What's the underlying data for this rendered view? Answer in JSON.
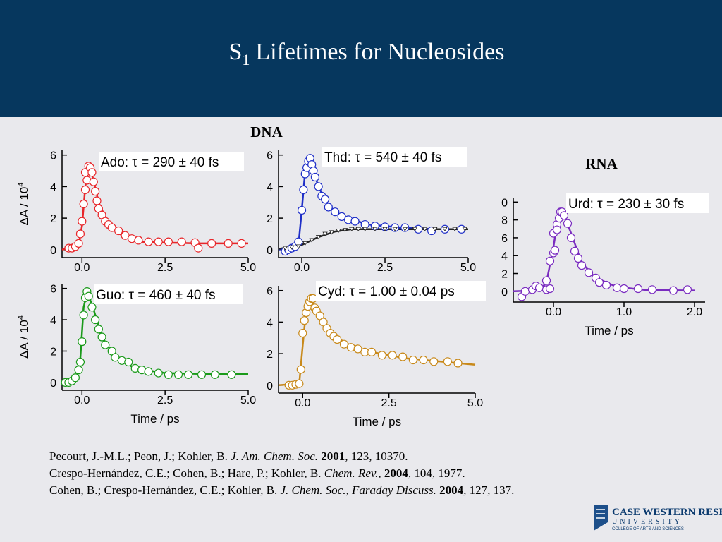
{
  "header": {
    "title": {
      "main": "S",
      "sub": "1",
      "rest": "Lifetimes for Nucleosides"
    }
  },
  "headings": {
    "dna": "DNA",
    "rna": "RNA"
  },
  "chart_data": [
    {
      "type": "scatter",
      "annotation": "Ado: τ = 290 ± 40 fs",
      "ylabel": {
        "text": "ΔA / 10",
        "sup": "4"
      },
      "xlim": [
        -0.6,
        5.0
      ],
      "xticks": [
        {
          "value": 0,
          "label": "0.0"
        },
        {
          "value": 2.5,
          "label": "2.5"
        },
        {
          "value": 5,
          "label": "5.0"
        }
      ],
      "ylim": [
        -0.5,
        6.3
      ],
      "yticks": [
        0,
        2,
        4,
        6
      ],
      "series": [
        {
          "color": "#e8262a",
          "mark": "circle",
          "x": [
            -0.4,
            -0.3,
            -0.2,
            -0.1,
            -0.05,
            0,
            0.05,
            0.1,
            0.15,
            0.1,
            0.2,
            0.25,
            0.3,
            0.35,
            0.4,
            0.45,
            0.5,
            0.6,
            0.7,
            0.8,
            0.9,
            1.1,
            1.3,
            1.5,
            1.7,
            2.0,
            2.3,
            2.6,
            3.0,
            3.4,
            3.5,
            3.9,
            4.4,
            4.8
          ],
          "values": [
            0.1,
            0.1,
            0.2,
            0.4,
            1,
            1.8,
            2.9,
            3.8,
            4.4,
            4.9,
            5.3,
            5.2,
            4.9,
            4.3,
            3.7,
            3.1,
            2.6,
            2.2,
            1.8,
            1.6,
            1.4,
            1.2,
            0.9,
            0.7,
            0.6,
            0.5,
            0.5,
            0.5,
            0.5,
            0.45,
            0.1,
            0.4,
            0.4,
            0.4
          ]
        },
        {
          "color": "#e8262a",
          "mark": "line",
          "x": [
            -0.6,
            -0.1,
            0,
            0.1,
            0.2,
            0.3,
            0.5,
            0.8,
            1.2,
            1.8,
            2.5,
            3.5,
            5.0
          ],
          "values": [
            0,
            0.3,
            1.5,
            4,
            5.2,
            4.8,
            3.0,
            1.6,
            0.9,
            0.5,
            0.45,
            0.4,
            0.4
          ]
        }
      ]
    },
    {
      "type": "scatter",
      "annotation": "Thd: τ = 540 ± 40 fs",
      "xlim": [
        -0.7,
        5.0
      ],
      "xticks": [
        {
          "value": 0,
          "label": "0.0"
        },
        {
          "value": 2.5,
          "label": "2.5"
        },
        {
          "value": 5,
          "label": "5.0"
        }
      ],
      "ylim": [
        -0.5,
        6.3
      ],
      "yticks": [
        0,
        2,
        4,
        6
      ],
      "series": [
        {
          "color": "#1f2fc8",
          "mark": "circle",
          "x": [
            -0.5,
            -0.4,
            -0.3,
            -0.2,
            -0.1,
            0,
            0.05,
            0.1,
            0.15,
            0.2,
            0.25,
            0.3,
            0.35,
            0.4,
            0.5,
            0.6,
            0.7,
            0.8,
            1.0,
            1.2,
            1.4,
            1.6,
            1.9,
            2.2,
            2.5,
            2.8,
            3.1,
            3.5,
            3.9,
            4.3,
            4.8
          ],
          "values": [
            -0.1,
            0,
            0.1,
            0.2,
            0.5,
            2.5,
            3.8,
            4.8,
            5.2,
            5.6,
            5.8,
            5.4,
            5,
            4.6,
            4.0,
            3.4,
            3.2,
            2.7,
            2.4,
            2.1,
            1.9,
            1.8,
            1.6,
            1.5,
            1.45,
            1.4,
            1.4,
            1.3,
            1.2,
            1.3,
            1.3
          ]
        },
        {
          "color": "#1f2fc8",
          "mark": "line",
          "x": [
            -0.7,
            -0.1,
            0,
            0.1,
            0.2,
            0.3,
            0.5,
            0.8,
            1.2,
            2,
            3,
            4,
            5
          ],
          "values": [
            0,
            0.3,
            2.5,
            5,
            5.8,
            5.3,
            4,
            2.8,
            2.1,
            1.6,
            1.4,
            1.3,
            1.3
          ]
        },
        {
          "color": "#222222",
          "mark": "triangle",
          "x": [
            -0.5,
            -0.3,
            -0.1,
            0.1,
            0.3,
            0.5,
            0.7,
            0.9,
            1.1,
            1.3,
            1.5,
            1.7,
            1.9,
            2.2,
            2.5,
            2.8,
            3.1,
            3.4,
            3.7,
            4,
            4.3,
            4.6,
            4.9
          ],
          "values": [
            0.1,
            0.15,
            0.2,
            0.4,
            0.6,
            0.8,
            1.0,
            1.1,
            1.2,
            1.25,
            1.3,
            1.3,
            1.3,
            1.3,
            1.3,
            1.3,
            1.3,
            1.3,
            1.3,
            1.3,
            1.3,
            1.3,
            1.3
          ]
        },
        {
          "color": "#222222",
          "mark": "line",
          "x": [
            -0.7,
            0,
            0.5,
            1,
            1.5,
            2,
            5
          ],
          "values": [
            0.05,
            0.3,
            0.8,
            1.15,
            1.3,
            1.3,
            1.3
          ]
        }
      ]
    },
    {
      "type": "scatter",
      "annotation": "Guo: τ = 460 ± 40 fs",
      "ylabel": {
        "text": "ΔA / 10",
        "sup": "4"
      },
      "xlabel": "Time / ps",
      "xlim": [
        -0.6,
        5.0
      ],
      "xticks": [
        {
          "value": 0,
          "label": "0.0"
        },
        {
          "value": 2.5,
          "label": "2.5"
        },
        {
          "value": 5,
          "label": "5.0"
        }
      ],
      "ylim": [
        -0.5,
        6.3
      ],
      "yticks": [
        0,
        2,
        4,
        6
      ],
      "series": [
        {
          "color": "#1a9a1a",
          "mark": "circle",
          "x": [
            -0.5,
            -0.4,
            -0.3,
            -0.2,
            -0.1,
            -0.05,
            0,
            0.05,
            0.1,
            0.15,
            0.2,
            0.3,
            0.4,
            0.5,
            0.6,
            0.7,
            0.9,
            1.0,
            1.2,
            1.4,
            1.6,
            1.8,
            2.0,
            2.3,
            2.6,
            2.9,
            3.2,
            3.6,
            4.0,
            4.5
          ],
          "values": [
            0,
            0,
            0.1,
            0.3,
            0.8,
            1.3,
            2.6,
            4.3,
            5.4,
            5.8,
            5.5,
            4.8,
            4.0,
            3.4,
            2.9,
            2.4,
            2.0,
            1.6,
            1.4,
            1.3,
            0.9,
            0.8,
            0.7,
            0.6,
            0.5,
            0.5,
            0.5,
            0.5,
            0.5,
            0.5
          ]
        },
        {
          "color": "#1a9a1a",
          "mark": "line",
          "x": [
            -0.6,
            -0.15,
            -0.05,
            0.05,
            0.15,
            0.3,
            0.6,
            1,
            1.6,
            2.5,
            3.5,
            5
          ],
          "values": [
            0,
            0.3,
            1.5,
            4.8,
            5.7,
            5.0,
            2.9,
            1.6,
            0.9,
            0.6,
            0.55,
            0.55
          ]
        }
      ]
    },
    {
      "type": "scatter",
      "annotation": "Cyd: τ = 1.00 ± 0.04 ps",
      "xlabel": "Time / ps",
      "xlim": [
        -0.7,
        5.0
      ],
      "xticks": [
        {
          "value": 0,
          "label": "0.0"
        },
        {
          "value": 2.5,
          "label": "2.5"
        },
        {
          "value": 5,
          "label": "5.0"
        }
      ],
      "ylim": [
        -0.5,
        6.3
      ],
      "yticks": [
        0,
        2,
        4,
        6
      ],
      "series": [
        {
          "color": "#c8891a",
          "mark": "circle",
          "x": [
            -0.4,
            -0.3,
            -0.2,
            -0.1,
            -0.05,
            0,
            0.05,
            0.1,
            0.15,
            0.2,
            0.25,
            0.3,
            0.35,
            0.4,
            0.5,
            0.6,
            0.7,
            0.8,
            0.9,
            1.0,
            1.2,
            1.4,
            1.6,
            1.8,
            2.0,
            2.3,
            2.6,
            2.9,
            3.2,
            3.5,
            3.8,
            4.2,
            4.5
          ],
          "values": [
            0,
            0,
            0.05,
            0.1,
            1,
            3.3,
            4.1,
            4.6,
            5.0,
            5.3,
            5.5,
            5.5,
            4.9,
            4.7,
            4.4,
            4.0,
            3.6,
            3.3,
            3.1,
            2.9,
            2.6,
            2.4,
            2.3,
            2.1,
            2.1,
            1.9,
            1.9,
            1.8,
            1.6,
            1.6,
            1.5,
            1.5,
            1.4
          ]
        },
        {
          "color": "#c8891a",
          "mark": "line",
          "x": [
            -0.7,
            -0.1,
            0,
            0.1,
            0.2,
            0.3,
            0.6,
            1,
            1.5,
            2,
            3,
            4,
            5
          ],
          "values": [
            0,
            0.1,
            2.5,
            4.8,
            5.5,
            5.2,
            4.0,
            3.0,
            2.4,
            2.1,
            1.7,
            1.5,
            1.3
          ]
        }
      ]
    },
    {
      "type": "scatter",
      "annotation": "Urd: τ = 230 ± 30 fs",
      "xlabel": "Time / ps",
      "xlim": [
        -0.57,
        2.15
      ],
      "xticks": [
        {
          "value": 0,
          "label": "0.0"
        },
        {
          "value": 1,
          "label": "1.0"
        },
        {
          "value": 2,
          "label": "2.0"
        }
      ],
      "ylim": [
        -1.2,
        10.5
      ],
      "yticks": [
        0,
        2,
        4,
        6,
        8,
        {
          "value": 10,
          "label": "0"
        }
      ],
      "series": [
        {
          "color": "#7a2cc0",
          "mark": "circle",
          "x": [
            -0.45,
            -0.4,
            -0.3,
            -0.25,
            -0.2,
            -0.1,
            -0.05,
            -0.1,
            -0.05,
            0,
            0.02,
            0,
            0.05,
            0.05,
            0.08,
            0.1,
            0.12,
            0.15,
            0.2,
            0.25,
            0.3,
            0.35,
            0.4,
            0.5,
            0.6,
            0.65,
            0.75,
            0.9,
            1.0,
            1.2,
            1.4,
            1.7,
            1.9
          ],
          "values": [
            -0.6,
            0,
            0.2,
            0.6,
            0.4,
            0.2,
            0.3,
            1.2,
            3.4,
            4.3,
            4.6,
            6.5,
            7.5,
            6.9,
            8.2,
            8.9,
            8.9,
            8.5,
            7.6,
            6.0,
            4.5,
            3.7,
            2.9,
            2.1,
            1.5,
            1.0,
            0.7,
            0.4,
            0.3,
            0.3,
            0.2,
            0.1,
            0.2
          ]
        },
        {
          "color": "#7a2cc0",
          "mark": "line",
          "x": [
            -0.57,
            -0.2,
            -0.1,
            0,
            0.05,
            0.1,
            0.15,
            0.25,
            0.4,
            0.6,
            0.9,
            1.3,
            2.0
          ],
          "values": [
            0,
            0.1,
            1.0,
            5,
            7.5,
            8.8,
            8.5,
            6.5,
            3.2,
            1.5,
            0.5,
            0.15,
            0.1
          ]
        }
      ]
    }
  ],
  "references": [
    [
      {
        "text": "Pecourt, J.-M.L.; Peon, J.; Kohler, B. "
      },
      {
        "text": "J. Am. Chem. Soc. ",
        "style": "italic"
      },
      {
        "text": "2001",
        "style": "bold"
      },
      {
        "text": ", 123, 10370."
      }
    ],
    [
      {
        "text": "Crespo-Hernández, C.E.; Cohen, B.; Hare, P.; Kohler, B. "
      },
      {
        "text": "Chem. Rev.",
        "style": "italic"
      },
      {
        "text": ", "
      },
      {
        "text": "2004",
        "style": "bold"
      },
      {
        "text": ", 104, 1977."
      }
    ],
    [
      {
        "text": "Cohen, B.; Crespo-Hernández, C.E.; Kohler, B. "
      },
      {
        "text": "J. Chem. Soc., Faraday Discuss. ",
        "style": "italic"
      },
      {
        "text": "2004",
        "style": "bold"
      },
      {
        "text": ", 127, 137."
      }
    ]
  ],
  "logo": {
    "name": "CASE WESTERN RESERVE",
    "university": "UNIVERSITY",
    "college": "COLLEGE OF ARTS AND SCIENCES"
  }
}
